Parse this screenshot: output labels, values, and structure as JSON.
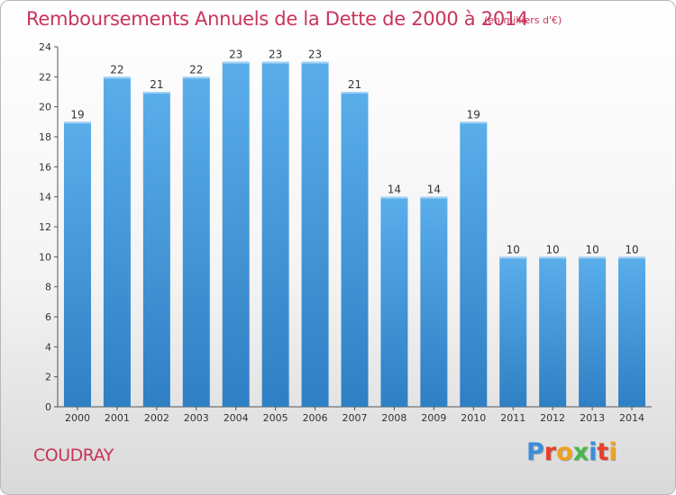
{
  "title": "Remboursements Annuels de la Dette de 2000 à 2014",
  "subtitle": "(en milliers d'€)",
  "commune": "COUDRAY",
  "logo": {
    "letters": [
      "P",
      "r",
      "o",
      "x",
      "i",
      "t",
      "i"
    ],
    "colors": [
      "#3a8fd8",
      "#e8402a",
      "#f0a020",
      "#48b848",
      "#3a8fd8",
      "#e8402a",
      "#f0a020"
    ]
  },
  "colors": {
    "accent": "#c8345a",
    "bar_top": "#5aaeea",
    "bar_bottom": "#2f7fc4"
  },
  "chart_data": {
    "type": "bar",
    "title": "Remboursements Annuels de la Dette de 2000 à 2014",
    "subtitle": "(en milliers d'€)",
    "categories": [
      "2000",
      "2001",
      "2002",
      "2003",
      "2004",
      "2005",
      "2006",
      "2007",
      "2008",
      "2009",
      "2010",
      "2011",
      "2012",
      "2013",
      "2014"
    ],
    "values": [
      19,
      22,
      21,
      22,
      23,
      23,
      23,
      21,
      14,
      14,
      19,
      10,
      10,
      10,
      10
    ],
    "ylim": [
      0,
      24
    ],
    "yticks": [
      0,
      2,
      4,
      6,
      8,
      10,
      12,
      14,
      16,
      18,
      20,
      22,
      24
    ],
    "grid": false,
    "legend": "none"
  }
}
